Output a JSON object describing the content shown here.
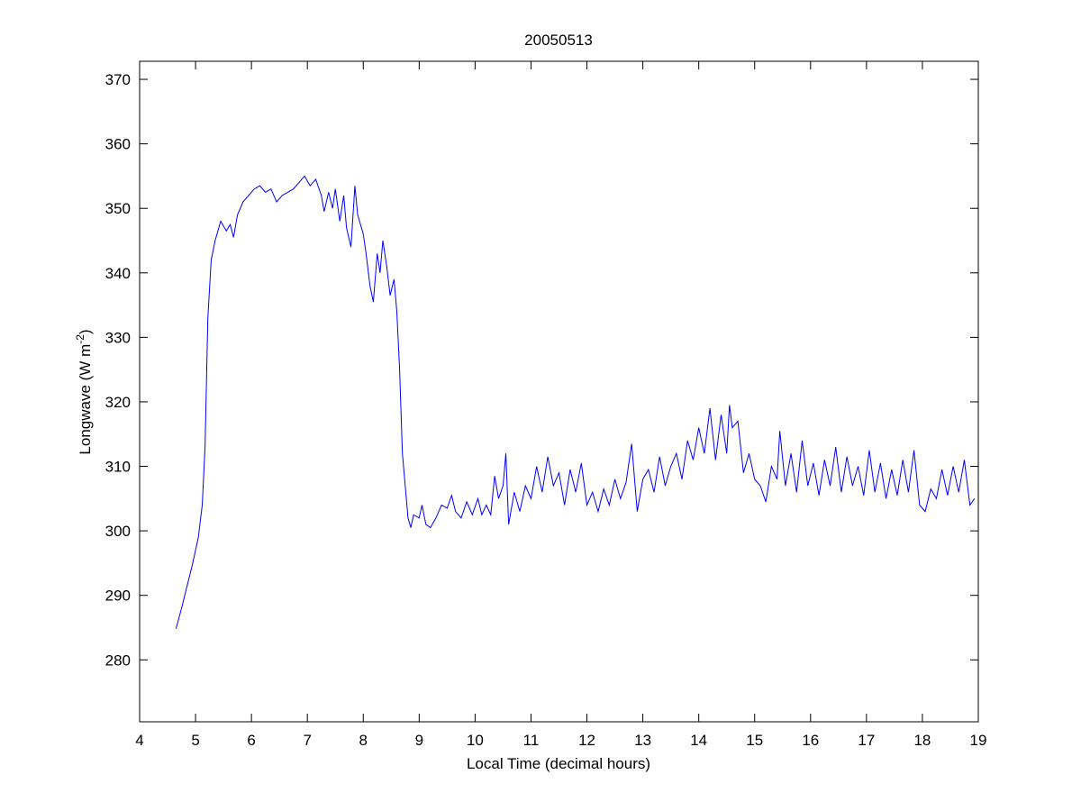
{
  "chart_data": {
    "type": "line",
    "title": "20050513",
    "xlabel": "Local Time (decimal hours)",
    "ylabel_parts": [
      "Longwave (W m",
      "-2",
      ")"
    ],
    "xlim": [
      4,
      19
    ],
    "xticks": [
      4,
      5,
      6,
      7,
      8,
      9,
      10,
      11,
      12,
      13,
      14,
      15,
      16,
      17,
      18,
      19
    ],
    "ylim": [
      270.4,
      372.8
    ],
    "yticks": [
      280,
      290,
      300,
      310,
      320,
      330,
      340,
      350,
      360,
      370
    ],
    "grid": false,
    "series": [
      {
        "color": "#0000ff",
        "x": [
          4.65,
          4.75,
          4.85,
          4.95,
          5.05,
          5.12,
          5.17,
          5.22,
          5.28,
          5.35,
          5.45,
          5.55,
          5.62,
          5.68,
          5.75,
          5.85,
          5.95,
          6.05,
          6.15,
          6.25,
          6.35,
          6.45,
          6.55,
          6.65,
          6.75,
          6.85,
          6.95,
          7.05,
          7.15,
          7.25,
          7.3,
          7.38,
          7.45,
          7.5,
          7.58,
          7.65,
          7.7,
          7.78,
          7.85,
          7.9,
          8.0,
          8.05,
          8.12,
          8.18,
          8.25,
          8.3,
          8.35,
          8.42,
          8.48,
          8.55,
          8.6,
          8.65,
          8.7,
          8.75,
          8.8,
          8.85,
          8.9,
          9.0,
          9.05,
          9.12,
          9.2,
          9.3,
          9.4,
          9.5,
          9.58,
          9.65,
          9.75,
          9.85,
          9.95,
          10.05,
          10.12,
          10.2,
          10.28,
          10.35,
          10.42,
          10.5,
          10.55,
          10.6,
          10.7,
          10.8,
          10.9,
          11.0,
          11.1,
          11.2,
          11.3,
          11.4,
          11.5,
          11.6,
          11.7,
          11.8,
          11.9,
          12.0,
          12.1,
          12.2,
          12.3,
          12.4,
          12.5,
          12.6,
          12.7,
          12.8,
          12.9,
          13.0,
          13.1,
          13.2,
          13.3,
          13.4,
          13.5,
          13.6,
          13.7,
          13.8,
          13.9,
          14.0,
          14.1,
          14.2,
          14.3,
          14.4,
          14.5,
          14.55,
          14.6,
          14.7,
          14.8,
          14.9,
          15.0,
          15.1,
          15.2,
          15.3,
          15.4,
          15.45,
          15.55,
          15.65,
          15.75,
          15.85,
          15.95,
          16.05,
          16.15,
          16.25,
          16.35,
          16.45,
          16.55,
          16.65,
          16.75,
          16.85,
          16.95,
          17.05,
          17.15,
          17.25,
          17.35,
          17.45,
          17.55,
          17.65,
          17.75,
          17.85,
          17.95,
          18.05,
          18.15,
          18.25,
          18.35,
          18.45,
          18.55,
          18.65,
          18.75,
          18.85,
          18.93
        ],
        "values": [
          284.8,
          288,
          291.5,
          295,
          299,
          304,
          313,
          333,
          342,
          345,
          348,
          346.5,
          347.5,
          345.5,
          349,
          351,
          352,
          353,
          353.5,
          352.5,
          353,
          351,
          352,
          352.5,
          353,
          354,
          355,
          353.5,
          354.5,
          352,
          349.5,
          352.5,
          350,
          353,
          348,
          352,
          347,
          344,
          353.5,
          349,
          346,
          343,
          338,
          335.5,
          343,
          340,
          345,
          341,
          336.5,
          339,
          334,
          325,
          312,
          307,
          302,
          300.5,
          302.5,
          302,
          304,
          301,
          300.5,
          302,
          304,
          303.5,
          305.5,
          303,
          302,
          304.5,
          302.5,
          305,
          302.5,
          304,
          302.5,
          308.5,
          305,
          307,
          312,
          301,
          306,
          303,
          307,
          305,
          310,
          306,
          311.5,
          307,
          309,
          304,
          309.5,
          306,
          310.5,
          304,
          306,
          303,
          306.5,
          304,
          308,
          305,
          307.5,
          313.5,
          303,
          308,
          309.5,
          306,
          311.5,
          307,
          310,
          312,
          308,
          314,
          311,
          316,
          312,
          319,
          311,
          318,
          312,
          319.5,
          316,
          317,
          309,
          312,
          308,
          307,
          304.5,
          310,
          308,
          315.5,
          307,
          312,
          306,
          314,
          307,
          310.5,
          305.5,
          311,
          307,
          313,
          306,
          311.5,
          307,
          310,
          305.5,
          312.5,
          306,
          310.5,
          305,
          309.5,
          305.5,
          311,
          306,
          312.5,
          304,
          303,
          306.5,
          305,
          309.5,
          305.5,
          310,
          306,
          311,
          304,
          305
        ]
      }
    ]
  }
}
